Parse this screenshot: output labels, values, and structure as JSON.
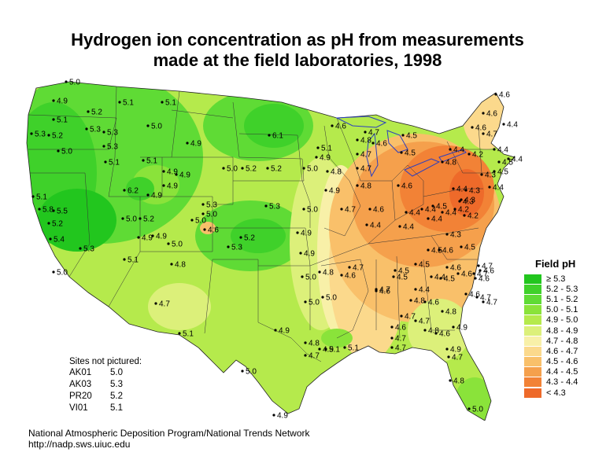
{
  "title": {
    "line1": "Hydrogen ion concentration as pH from measurements",
    "line2": "made at the field laboratories, 1998"
  },
  "legend": {
    "title": "Field pH",
    "items": [
      {
        "label": "≥ 5.3",
        "color": "#22c61e"
      },
      {
        "label": "5.2 - 5.3",
        "color": "#3fd12a"
      },
      {
        "label": "5.1 - 5.2",
        "color": "#5fdb35"
      },
      {
        "label": "5.0 - 5.1",
        "color": "#8ae33a"
      },
      {
        "label": "4.9 - 5.0",
        "color": "#b5ea4c"
      },
      {
        "label": "4.8 - 4.9",
        "color": "#dcf07a"
      },
      {
        "label": "4.7 - 4.8",
        "color": "#f8f0a8"
      },
      {
        "label": "4.6 - 4.7",
        "color": "#fbd98c"
      },
      {
        "label": "4.5 - 4.6",
        "color": "#f9c06a"
      },
      {
        "label": "4.4 - 4.5",
        "color": "#f5a04c"
      },
      {
        "label": "4.3 - 4.4",
        "color": "#f28236"
      },
      {
        "label": "< 4.3",
        "color": "#ee6a2a"
      }
    ]
  },
  "not_pictured": {
    "heading": "Sites not pictured:",
    "sites": [
      {
        "site": "AK01",
        "value": "5.0"
      },
      {
        "site": "AK03",
        "value": "5.3"
      },
      {
        "site": "PR20",
        "value": "5.2"
      },
      {
        "site": "VI01",
        "value": "5.1"
      }
    ]
  },
  "footer": {
    "line1": "National Atmospheric Deposition Program/National Trends Network",
    "line2": "http://nadp.sws.uiuc.edu"
  },
  "sites": [
    {
      "v": "5.0"
    },
    {
      "v": "4.9"
    },
    {
      "v": "5.1"
    },
    {
      "v": "5.3"
    },
    {
      "v": "5.2"
    },
    {
      "v": "5.0"
    },
    {
      "v": "5.3"
    },
    {
      "v": "5.1"
    },
    {
      "v": "5.8"
    },
    {
      "v": "5.5"
    },
    {
      "v": "5.2"
    },
    {
      "v": "5.4"
    },
    {
      "v": "5.3"
    },
    {
      "v": "5.0"
    },
    {
      "v": "5.2"
    },
    {
      "v": "5.3"
    },
    {
      "v": "5.3"
    },
    {
      "v": "5.1"
    },
    {
      "v": "5.1"
    },
    {
      "v": "5.0"
    },
    {
      "v": "5.1"
    },
    {
      "v": "5.1"
    },
    {
      "v": "4.9"
    },
    {
      "v": "4.9"
    },
    {
      "v": "4.9"
    },
    {
      "v": "6.2"
    },
    {
      "v": "4.9"
    },
    {
      "v": "4.9"
    },
    {
      "v": "5.0"
    },
    {
      "v": "5.2"
    },
    {
      "v": "4.9"
    },
    {
      "v": "4.9"
    },
    {
      "v": "5.0"
    },
    {
      "v": "4.8"
    },
    {
      "v": "5.1"
    },
    {
      "v": "4.7"
    },
    {
      "v": "5.1"
    },
    {
      "v": "5.3"
    },
    {
      "v": "5.0"
    },
    {
      "v": "5.0"
    },
    {
      "v": "4.6"
    },
    {
      "v": "5.3"
    },
    {
      "v": "5.2"
    },
    {
      "v": "5.0"
    },
    {
      "v": "5.2"
    },
    {
      "v": "5.2"
    },
    {
      "v": "6.1"
    },
    {
      "v": "5.0"
    },
    {
      "v": "5.3"
    },
    {
      "v": "5.0"
    },
    {
      "v": "4.9"
    },
    {
      "v": "4.9"
    },
    {
      "v": "5.0"
    },
    {
      "v": "4.8"
    },
    {
      "v": "5.0"
    },
    {
      "v": "5.0"
    },
    {
      "v": "4.9"
    },
    {
      "v": "4.8"
    },
    {
      "v": "4.7"
    },
    {
      "v": "5.0"
    },
    {
      "v": "4.9"
    },
    {
      "v": "5.1"
    },
    {
      "v": "5.1"
    },
    {
      "v": "4.9"
    },
    {
      "v": "4.8"
    },
    {
      "v": "4.9"
    },
    {
      "v": "4.6"
    },
    {
      "v": "4.8"
    },
    {
      "v": "4.7"
    },
    {
      "v": "4.7"
    },
    {
      "v": "4.8"
    },
    {
      "v": "4.7"
    },
    {
      "v": "4.6"
    },
    {
      "v": "4.5"
    },
    {
      "v": "4.5"
    },
    {
      "v": "4.6"
    },
    {
      "v": "4.7"
    },
    {
      "v": "4.4"
    },
    {
      "v": "4.6"
    },
    {
      "v": "4.4"
    },
    {
      "v": "4.4"
    },
    {
      "v": "4.4"
    },
    {
      "v": "4.5"
    },
    {
      "v": "4.4"
    },
    {
      "v": "4.4"
    },
    {
      "v": "4.3"
    },
    {
      "v": "4.5"
    },
    {
      "v": "4.6"
    },
    {
      "v": "4.5"
    },
    {
      "v": "4.5"
    },
    {
      "v": "4.6"
    },
    {
      "v": "4.4"
    },
    {
      "v": "4.5"
    },
    {
      "v": "4.5"
    },
    {
      "v": "4.7"
    },
    {
      "v": "4.4"
    },
    {
      "v": "4.5"
    },
    {
      "v": "4.6"
    },
    {
      "v": "4.7"
    },
    {
      "v": "4.6"
    },
    {
      "v": "4.6"
    },
    {
      "v": "4.7"
    },
    {
      "v": "4.7"
    },
    {
      "v": "4.7"
    },
    {
      "v": "4.8"
    },
    {
      "v": "4.6"
    },
    {
      "v": "4.7"
    },
    {
      "v": "4.8"
    },
    {
      "v": "4.8"
    },
    {
      "v": "4.6"
    },
    {
      "v": "4.9"
    },
    {
      "v": "4.7"
    },
    {
      "v": "4.8"
    },
    {
      "v": "5.0"
    },
    {
      "v": "4.7"
    },
    {
      "v": "4.6"
    },
    {
      "v": "4.6"
    },
    {
      "v": "4.6"
    },
    {
      "v": "4.7"
    },
    {
      "v": "4.7"
    },
    {
      "v": "4.8"
    },
    {
      "v": "4.4"
    },
    {
      "v": "4.2"
    },
    {
      "v": "4.4"
    },
    {
      "v": "4.3"
    },
    {
      "v": "4.2"
    },
    {
      "v": "4.3"
    },
    {
      "v": "4.4"
    },
    {
      "v": "4.4"
    },
    {
      "v": "4.5"
    },
    {
      "v": "4.5"
    },
    {
      "v": "4.4"
    },
    {
      "v": "4.3"
    },
    {
      "v": "4.2"
    },
    {
      "v": "4.3"
    },
    {
      "v": "4.6"
    },
    {
      "v": "4.6"
    },
    {
      "v": "4.4"
    },
    {
      "v": "4.6"
    },
    {
      "v": "4.7"
    },
    {
      "v": "4.9"
    },
    {
      "v": "5.1"
    },
    {
      "v": "4.9"
    },
    {
      "v": "4.7"
    },
    {
      "v": "4.6"
    }
  ]
}
